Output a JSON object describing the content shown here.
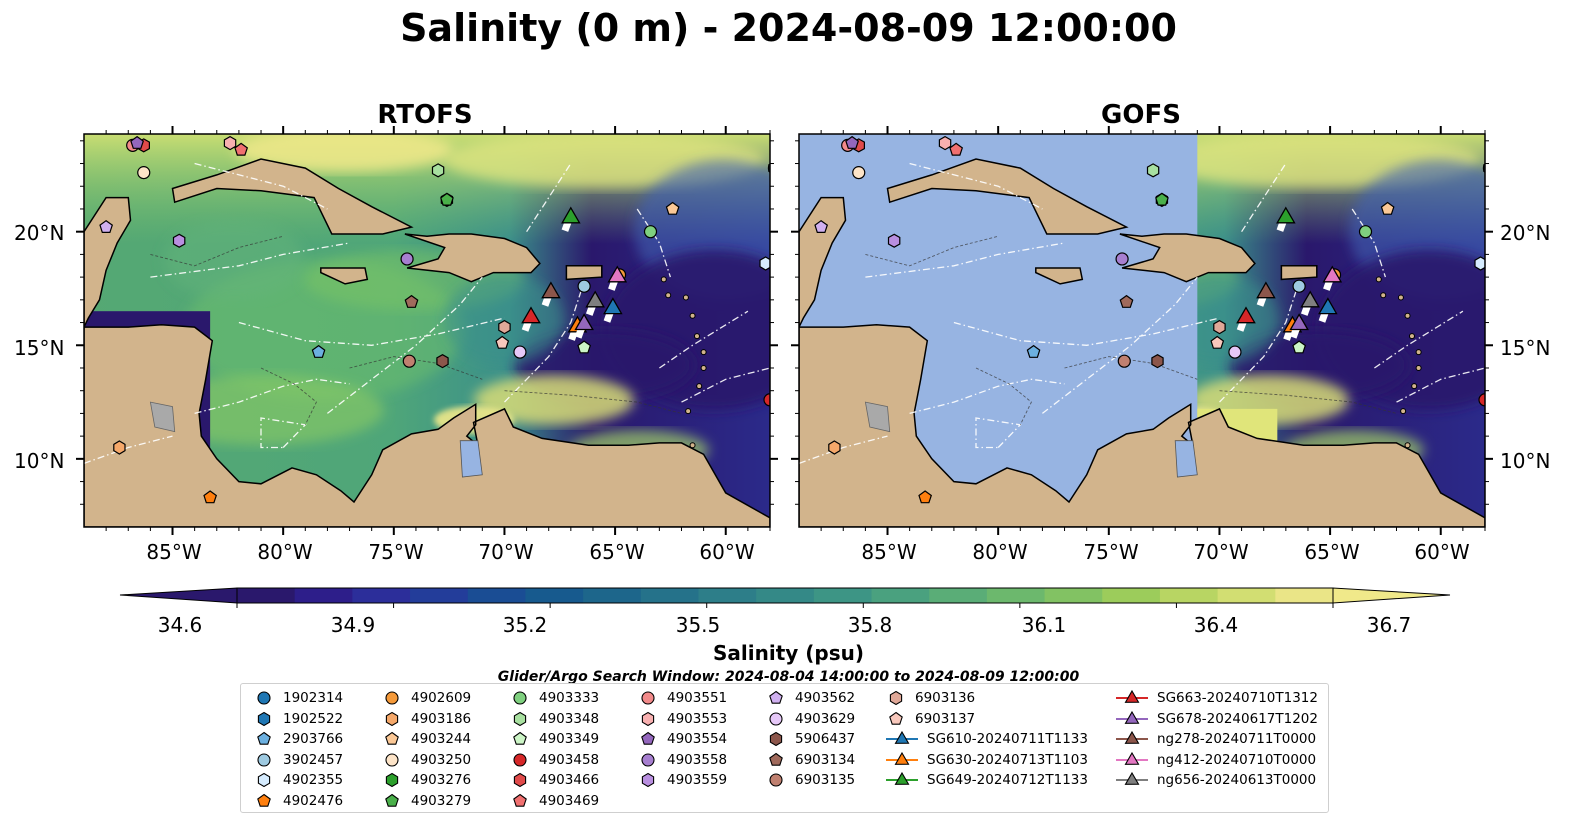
{
  "figure": {
    "title": "Salinity (0 m) - 2024-08-09 12:00:00"
  },
  "panels": [
    {
      "id": "rtofs",
      "title": "RTOFS",
      "model_coverage": "full"
    },
    {
      "id": "gofs",
      "title": "GOFS",
      "model_coverage": "east of 71°W"
    }
  ],
  "axes": {
    "lon_range": [
      -89,
      -58
    ],
    "lat_range": [
      7,
      24.3
    ],
    "x_ticks": [
      "85°W",
      "80°W",
      "75°W",
      "70°W",
      "65°W",
      "60°W"
    ],
    "y_ticks": [
      "20°N",
      "15°N",
      "10°N"
    ]
  },
  "colorbar": {
    "title": "Salinity (psu)",
    "range": [
      34.6,
      36.7
    ],
    "ticks": [
      "34.6",
      "34.9",
      "35.2",
      "35.5",
      "35.8",
      "36.1",
      "36.4",
      "36.7"
    ],
    "extend": "both",
    "colormap": "haline"
  },
  "colors": {
    "land": "#d2b48c",
    "no_data": "#97b4e2",
    "low_salinity": "#2a186c",
    "mid_salinity": "#2a8a8c",
    "high_salinity": "#f0e98a"
  },
  "search_window": "Glider/Argo Search Window: 2024-08-04 14:00:00 to 2024-08-09 12:00:00",
  "legend": {
    "argo": [
      {
        "id": "1902314",
        "marker": "circle",
        "color": "#1f77b4",
        "lon": -57.8,
        "lat": 22.8
      },
      {
        "id": "1902522",
        "marker": "hexagon",
        "color": "#1f77b4",
        "lon": -57.8,
        "lat": 22.8
      },
      {
        "id": "2903766",
        "marker": "pentagon",
        "color": "#6cb0e0",
        "lon": -78.4,
        "lat": 14.7
      },
      {
        "id": "3902457",
        "marker": "circle",
        "color": "#9ecae1",
        "lon": -66.4,
        "lat": 17.6
      },
      {
        "id": "4902355",
        "marker": "hexagon",
        "color": "#d6ecff",
        "lon": -58.2,
        "lat": 18.6
      },
      {
        "id": "4902476",
        "marker": "pentagon",
        "color": "#ff7f0e",
        "lon": -83.3,
        "lat": 8.3
      },
      {
        "id": "4902609",
        "marker": "circle",
        "color": "#f59a3a",
        "lon": -64.8,
        "lat": 18.1
      },
      {
        "id": "4903186",
        "marker": "hexagon",
        "color": "#f5a86a",
        "lon": -87.4,
        "lat": 10.5
      },
      {
        "id": "4903244",
        "marker": "pentagon",
        "color": "#fbc896",
        "lon": -62.4,
        "lat": 21.0
      },
      {
        "id": "4903250",
        "marker": "circle",
        "color": "#fde4c8",
        "lon": -86.3,
        "lat": 22.6
      },
      {
        "id": "4903276",
        "marker": "hexagon",
        "color": "#2ca02c",
        "lon": -72.6,
        "lat": 21.4
      },
      {
        "id": "4903279",
        "marker": "pentagon",
        "color": "#4ab04a",
        "lon": -72.6,
        "lat": 21.4
      },
      {
        "id": "4903333",
        "marker": "circle",
        "color": "#7fd07f",
        "lon": -63.4,
        "lat": 20.0
      },
      {
        "id": "4903348",
        "marker": "hexagon",
        "color": "#a8e0a0",
        "lon": -73.0,
        "lat": 22.7
      },
      {
        "id": "4903349",
        "marker": "pentagon",
        "color": "#ccf5c6",
        "lon": -66.4,
        "lat": 14.9
      },
      {
        "id": "4903458",
        "marker": "circle",
        "color": "#d62728",
        "lon": -58.0,
        "lat": 12.6
      },
      {
        "id": "4903466",
        "marker": "hexagon",
        "color": "#e04a4a",
        "lon": -86.3,
        "lat": 23.8
      },
      {
        "id": "4903469",
        "marker": "pentagon",
        "color": "#f07070",
        "lon": -81.9,
        "lat": 23.6
      },
      {
        "id": "4903551",
        "marker": "circle",
        "color": "#f28a8a",
        "lon": -86.8,
        "lat": 23.8
      },
      {
        "id": "4903553",
        "marker": "hexagon",
        "color": "#f8b0b0",
        "lon": -82.4,
        "lat": 23.9
      },
      {
        "id": "4903554",
        "marker": "pentagon",
        "color": "#9467bd",
        "lon": -86.6,
        "lat": 23.9
      },
      {
        "id": "4903558",
        "marker": "circle",
        "color": "#a77fd0",
        "lon": -74.4,
        "lat": 18.8
      },
      {
        "id": "4903559",
        "marker": "hexagon",
        "color": "#b98fe0",
        "lon": -84.7,
        "lat": 19.6
      },
      {
        "id": "4903562",
        "marker": "pentagon",
        "color": "#d0b0f0",
        "lon": -88.0,
        "lat": 20.2
      },
      {
        "id": "4903629",
        "marker": "circle",
        "color": "#e6c8f8",
        "lon": -69.3,
        "lat": 14.7
      },
      {
        "id": "5906437",
        "marker": "hexagon",
        "color": "#8c564b",
        "lon": -72.8,
        "lat": 14.3
      },
      {
        "id": "6903134",
        "marker": "pentagon",
        "color": "#a06a5c",
        "lon": -74.2,
        "lat": 16.9
      },
      {
        "id": "6903135",
        "marker": "circle",
        "color": "#c08070",
        "lon": -74.3,
        "lat": 14.3
      },
      {
        "id": "6903136",
        "marker": "hexagon",
        "color": "#e0a898",
        "lon": -70.0,
        "lat": 15.8
      },
      {
        "id": "6903137",
        "marker": "pentagon",
        "color": "#f8c8bc",
        "lon": -70.1,
        "lat": 15.1
      }
    ],
    "gliders": [
      {
        "id": "SG610-20240711T1133",
        "color": "#1f77b4",
        "marker": "triangle",
        "lon": -65.1,
        "lat": 16.7
      },
      {
        "id": "SG630-20240713T1103",
        "color": "#ff7f0e",
        "marker": "triangle",
        "lon": -66.7,
        "lat": 15.9
      },
      {
        "id": "SG649-20240712T1133",
        "color": "#2ca02c",
        "marker": "triangle",
        "lon": -67.0,
        "lat": 20.7
      },
      {
        "id": "SG663-20240710T1312",
        "color": "#d62728",
        "marker": "triangle",
        "lon": -68.8,
        "lat": 16.3
      },
      {
        "id": "SG678-20240617T1202",
        "color": "#9467bd",
        "marker": "triangle",
        "lon": -66.4,
        "lat": 16.0
      },
      {
        "id": "ng278-20240711T0000",
        "color": "#8c564b",
        "marker": "triangle",
        "lon": -67.9,
        "lat": 17.4
      },
      {
        "id": "ng412-20240710T0000",
        "color": "#e377c2",
        "marker": "triangle",
        "lon": -64.9,
        "lat": 18.1
      },
      {
        "id": "ng656-20240613T0000",
        "color": "#7f7f7f",
        "marker": "triangle",
        "lon": -65.9,
        "lat": 17.0
      }
    ]
  }
}
